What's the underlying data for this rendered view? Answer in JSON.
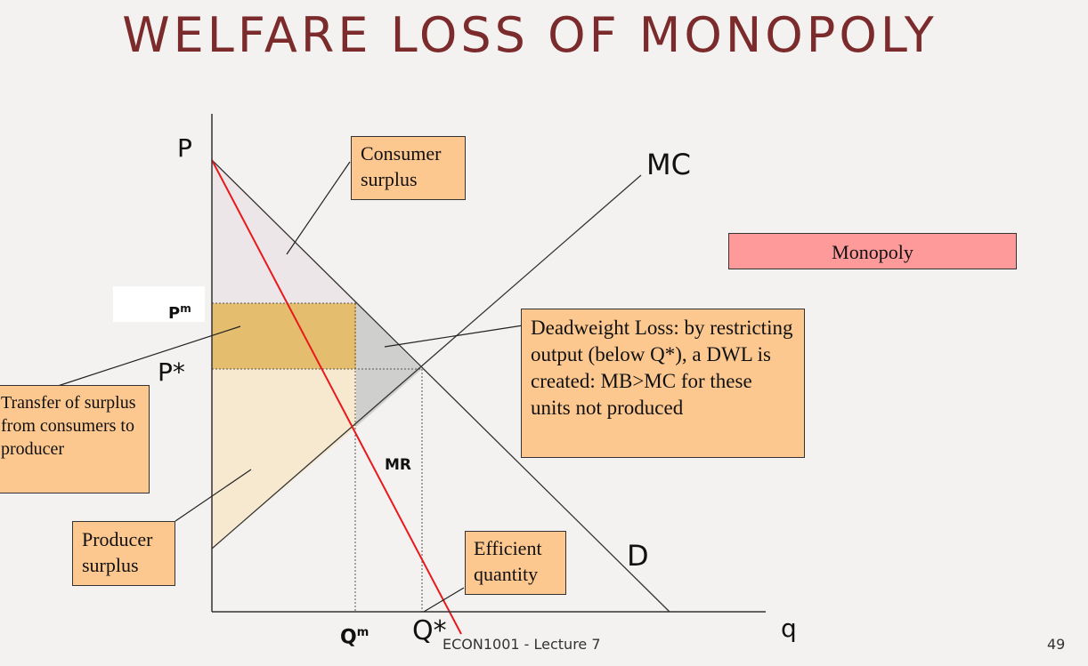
{
  "slide": {
    "title": "WELFARE LOSS OF MONOPOLY",
    "footer_text": "ECON1001 - Lecture 7",
    "page_number": "49"
  },
  "axes": {
    "y_label": "P",
    "x_label": "q",
    "price_monopoly_label": "P",
    "price_monopoly_sup": "m",
    "price_competitive_label": "P*",
    "qty_monopoly_label": "Q",
    "qty_monopoly_sup": "m",
    "qty_efficient_label": "Q*"
  },
  "curves": {
    "mc_label": "MC",
    "demand_label": "D",
    "mr_label": "MR"
  },
  "callouts": {
    "consumer_surplus": "Consumer surplus",
    "monopoly": "Monopoly",
    "deadweight_loss": "Deadweight Loss: by restricting output (below Q*), a DWL is created: MB>MC for these units not produced",
    "transfer": "Transfer of surplus from consumers to producer",
    "producer_surplus": "Producer surplus",
    "efficient_quantity": "Efficient quantity"
  },
  "colors": {
    "title": "#7b2b2b",
    "callout_fill": "#fcc88f",
    "monopoly_fill": "#ff9a9a",
    "mr_line": "#e8191b",
    "consumer_surplus_fill": "#ece6e9",
    "transfer_fill": "#e4bd6e",
    "producer_surplus_fill": "#f7e9d0",
    "deadweight_fill": "#cfcfcd"
  }
}
